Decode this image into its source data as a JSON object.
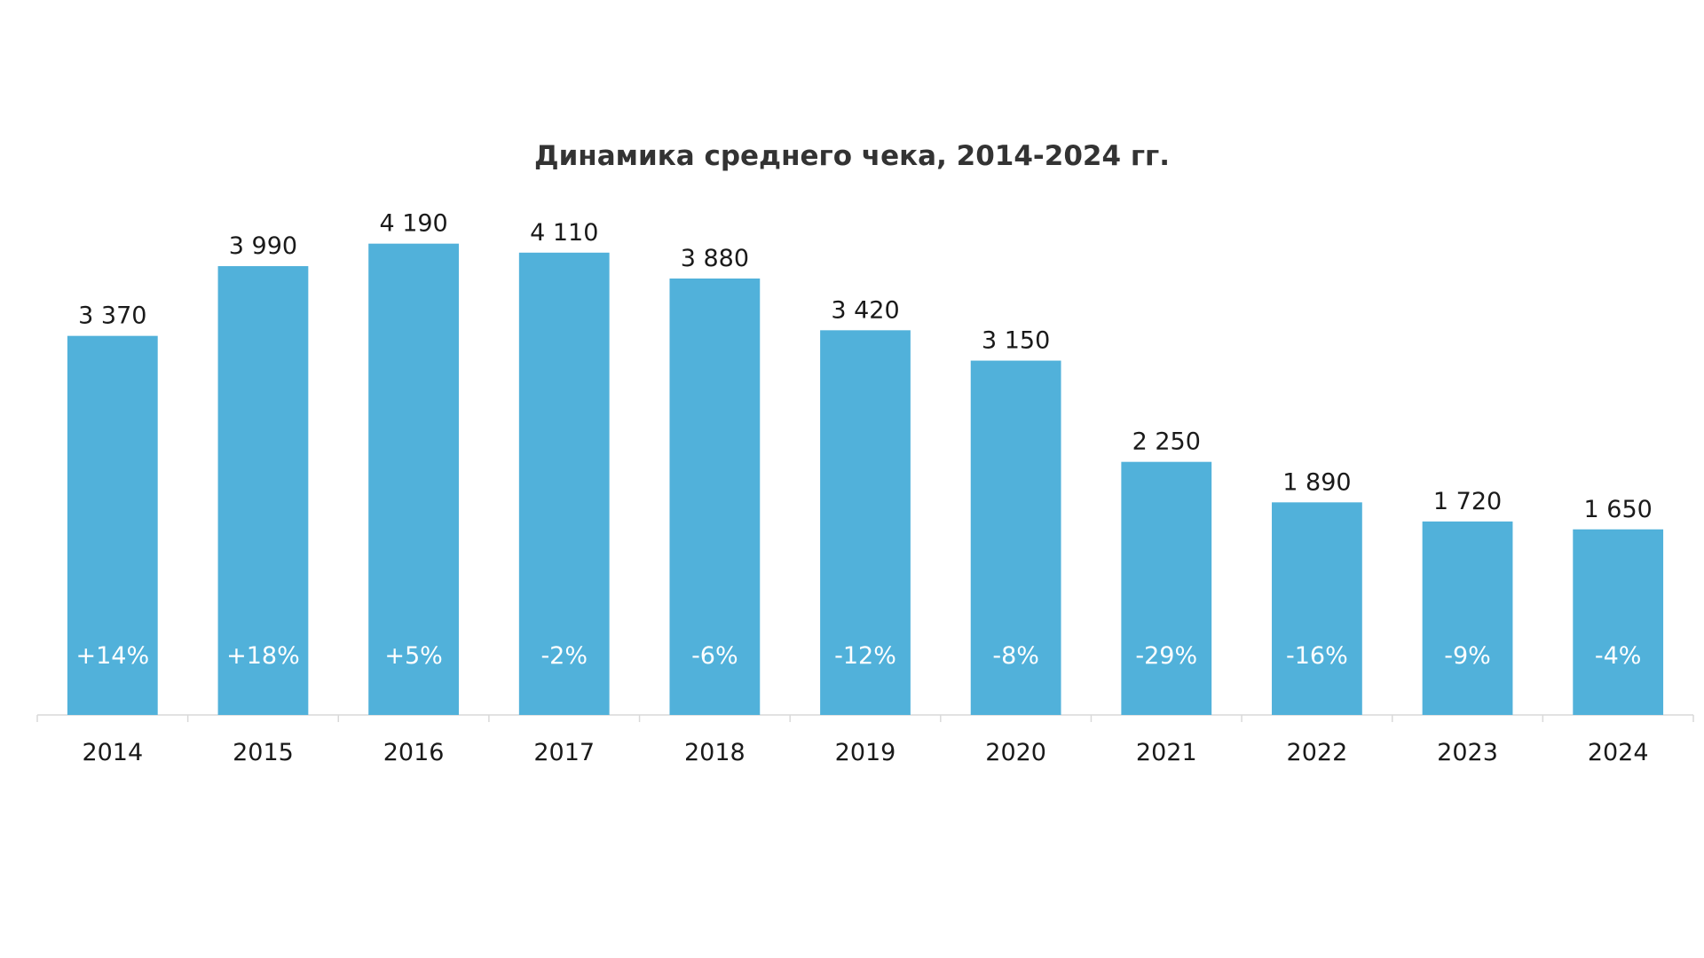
{
  "chart_data": {
    "type": "bar",
    "title": "Динамика среднего чека, 2014-2024 гг.",
    "xlabel": "",
    "ylabel": "",
    "categories": [
      "2014",
      "2015",
      "2016",
      "2017",
      "2018",
      "2019",
      "2020",
      "2021",
      "2022",
      "2023",
      "2024"
    ],
    "values": [
      3370,
      3990,
      4190,
      4110,
      3880,
      3420,
      3150,
      2250,
      1890,
      1720,
      1650
    ],
    "value_labels": [
      "3 370",
      "3 990",
      "4 190",
      "4 110",
      "3 880",
      "3 420",
      "3 150",
      "2 250",
      "1 890",
      "1 720",
      "1 650"
    ],
    "change_labels": [
      "+14%",
      "+18%",
      "+5%",
      "-2%",
      "-6%",
      "-12%",
      "-8%",
      "-29%",
      "-16%",
      "-9%",
      "-4%"
    ],
    "ylim": [
      0,
      4700
    ],
    "grid": false,
    "legend": "none",
    "bar_color": "#51b1da"
  }
}
